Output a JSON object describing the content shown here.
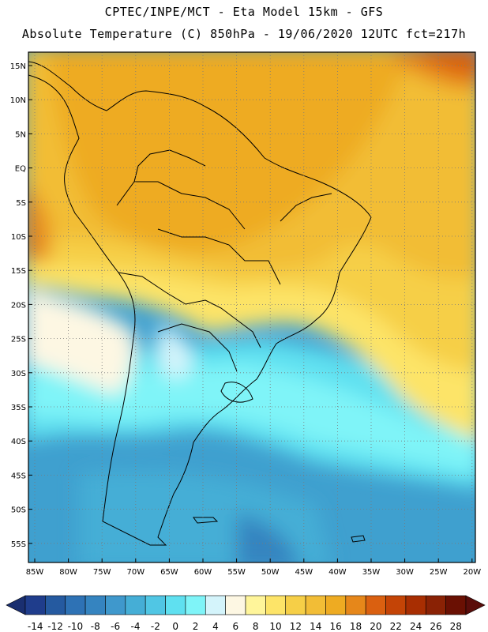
{
  "header": {
    "line1": "CPTEC/INPE/MCT -  Eta Model 15km - GFS",
    "line2": "Absolute Temperature (C) 850hPa - 19/06/2020 12UTC fct=217h"
  },
  "map": {
    "lat_labels": [
      "15N",
      "10N",
      "5N",
      "EQ",
      "5S",
      "10S",
      "15S",
      "20S",
      "25S",
      "30S",
      "35S",
      "40S",
      "45S",
      "50S",
      "55S"
    ],
    "lon_labels": [
      "85W",
      "80W",
      "75W",
      "70W",
      "65W",
      "60W",
      "55W",
      "50W",
      "45W",
      "40W",
      "35W",
      "30W",
      "25W",
      "20W"
    ],
    "grid": "dotted"
  },
  "colorbar": {
    "labels": [
      "-14",
      "-12",
      "-10",
      "-8",
      "-6",
      "-4",
      "-2",
      "0",
      "2",
      "4",
      "6",
      "8",
      "10",
      "12",
      "14",
      "16",
      "18",
      "20",
      "22",
      "24",
      "26",
      "28"
    ],
    "colors": [
      "#1f3d8c",
      "#255aa0",
      "#2e72b5",
      "#3584c0",
      "#3f98cc",
      "#45aed6",
      "#50c6e4",
      "#5fe0f0",
      "#7ff4f8",
      "#d4f4fb",
      "#fdf7e3",
      "#fff59a",
      "#fde468",
      "#f6cf47",
      "#f2bd36",
      "#eeab22",
      "#e6871a",
      "#da6010",
      "#c44406",
      "#a82e02",
      "#8a2205",
      "#6a1003"
    ],
    "left_arrow_color": "#1a2f70",
    "right_arrow_color": "#5a0d0a"
  }
}
